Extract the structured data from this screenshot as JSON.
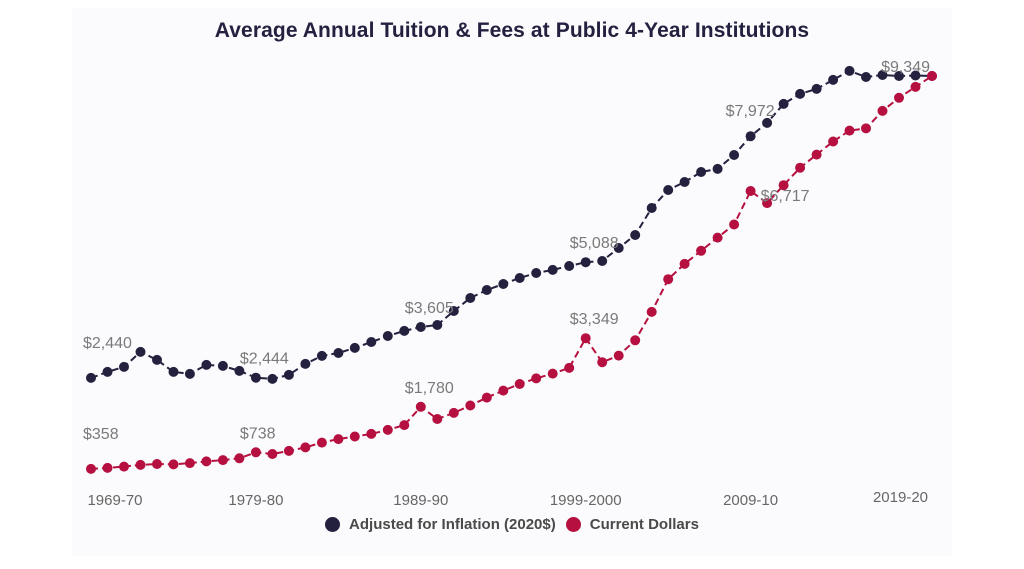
{
  "chart_data": {
    "type": "line",
    "title": "Average Annual Tuition & Fees at Public 4-Year Institutions",
    "xlabel": "",
    "ylabel": "",
    "ylim": [
      0,
      9500
    ],
    "grid": false,
    "legend_position": "bottom",
    "x": [
      "1969-70",
      "1970-71",
      "1971-72",
      "1972-73",
      "1973-74",
      "1974-75",
      "1975-76",
      "1976-77",
      "1977-78",
      "1978-79",
      "1979-80",
      "1980-81",
      "1981-82",
      "1982-83",
      "1983-84",
      "1984-85",
      "1985-86",
      "1986-87",
      "1987-88",
      "1988-89",
      "1989-90",
      "1990-91",
      "1991-92",
      "1992-93",
      "1993-94",
      "1994-95",
      "1995-96",
      "1996-97",
      "1997-98",
      "1998-99",
      "1999-2000",
      "2000-01",
      "2001-02",
      "2002-03",
      "2003-04",
      "2004-05",
      "2005-06",
      "2006-07",
      "2007-08",
      "2008-09",
      "2009-10",
      "2010-11",
      "2011-12",
      "2012-13",
      "2013-14",
      "2014-15",
      "2015-16",
      "2016-17",
      "2017-18",
      "2018-19",
      "2019-20",
      "2020-21"
    ],
    "x_tick_labels": [
      "1969-70",
      "1979-80",
      "1989-90",
      "1999-2000",
      "2009-10",
      "2019-20"
    ],
    "x_tick_indices": [
      0,
      10,
      20,
      30,
      40,
      50
    ],
    "series": [
      {
        "name": "Adjusted for Inflation (2020$)",
        "color": "#24213f",
        "values": [
          2440,
          2577,
          2692,
          3035,
          2852,
          2577,
          2531,
          2737,
          2714,
          2600,
          2444,
          2417,
          2509,
          2760,
          2943,
          3011,
          3126,
          3263,
          3400,
          3515,
          3605,
          3652,
          3972,
          4270,
          4453,
          4590,
          4727,
          4842,
          4911,
          5002,
          5088,
          5116,
          5413,
          5711,
          6329,
          6741,
          6924,
          7153,
          7222,
          7542,
          7972,
          8275,
          8710,
          8939,
          9053,
          9259,
          9465,
          9327,
          9373,
          9349,
          9360,
          9349
        ],
        "annotations": [
          {
            "index": 0,
            "text": "$2,440"
          },
          {
            "index": 10,
            "text": "$2,444"
          },
          {
            "index": 20,
            "text": "$3,605"
          },
          {
            "index": 30,
            "text": "$5,088"
          },
          {
            "index": 40,
            "text": "$7,972"
          },
          {
            "index": 51,
            "text": "$9,349"
          }
        ]
      },
      {
        "name": "Current Dollars",
        "color": "#b5103f",
        "values": [
          358,
          381,
          410,
          450,
          470,
          460,
          490,
          530,
          560,
          600,
          738,
          700,
          770,
          850,
          960,
          1040,
          1100,
          1160,
          1250,
          1360,
          1780,
          1500,
          1640,
          1810,
          1990,
          2150,
          2300,
          2430,
          2540,
          2670,
          3349,
          2800,
          2950,
          3300,
          3950,
          4700,
          5050,
          5350,
          5650,
          5950,
          6717,
          6440,
          6850,
          7250,
          7550,
          7850,
          8100,
          8150,
          8550,
          8850,
          9100,
          9349
        ],
        "annotations": [
          {
            "index": 0,
            "text": "$358"
          },
          {
            "index": 10,
            "text": "$738"
          },
          {
            "index": 20,
            "text": "$1,780"
          },
          {
            "index": 30,
            "text": "$3,349"
          },
          {
            "index": 40,
            "text": "$6,717"
          }
        ]
      }
    ]
  }
}
